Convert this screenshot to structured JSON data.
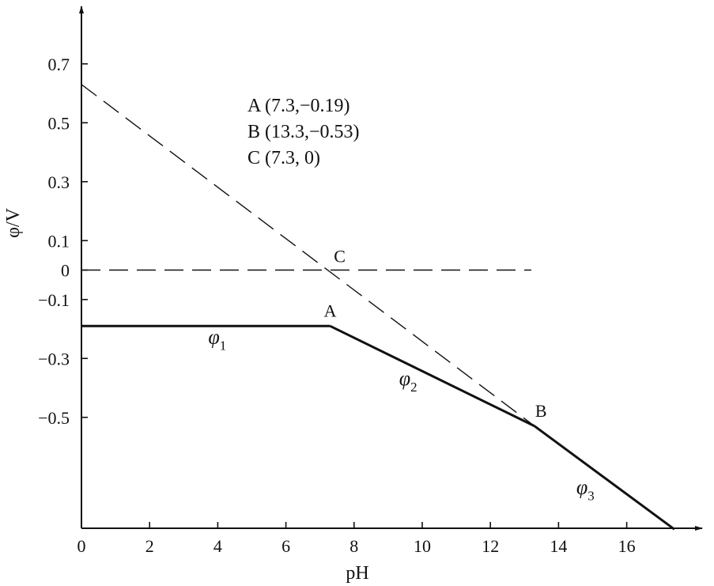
{
  "chart_data": {
    "type": "line",
    "xlabel": "pH",
    "ylabel": "φ/V",
    "xlim": [
      0,
      18
    ],
    "ylim": [
      -0.9,
      0.9
    ],
    "x_ticks": [
      0,
      2,
      4,
      6,
      8,
      10,
      12,
      14,
      16
    ],
    "y_ticks": [
      0.7,
      0.5,
      0.3,
      0.1,
      0,
      -0.1,
      -0.3,
      -0.5
    ],
    "y_tick_labels": [
      "0.7",
      "0.5",
      "0.3",
      "0.1",
      "0",
      "−0.1",
      "−0.3",
      "−0.5"
    ],
    "grid": false,
    "series": [
      {
        "name": "φ1",
        "style": "solid",
        "points": [
          [
            0,
            -0.19
          ],
          [
            7.3,
            -0.19
          ]
        ]
      },
      {
        "name": "φ2",
        "style": "solid",
        "points": [
          [
            7.3,
            -0.19
          ],
          [
            13.3,
            -0.53
          ]
        ]
      },
      {
        "name": "φ3",
        "style": "solid",
        "points": [
          [
            13.3,
            -0.53
          ],
          [
            17.4,
            -0.88
          ]
        ]
      },
      {
        "style": "dashed",
        "points": [
          [
            0,
            0.63
          ],
          [
            13.3,
            -0.53
          ]
        ]
      },
      {
        "style": "dashed",
        "points": [
          [
            0,
            0
          ],
          [
            13.2,
            0
          ]
        ]
      }
    ],
    "curve_labels": [
      {
        "base": "φ",
        "sub": "1",
        "x": 4,
        "y": -0.25
      },
      {
        "base": "φ",
        "sub": "2",
        "x": 9.6,
        "y": -0.39
      },
      {
        "base": "φ",
        "sub": "3",
        "x": 14.8,
        "y": -0.76
      }
    ],
    "points": [
      {
        "label": "A",
        "x": 7.3,
        "y": -0.19
      },
      {
        "label": "B",
        "x": 13.3,
        "y": -0.53
      },
      {
        "label": "C",
        "x": 7.3,
        "y": 0
      }
    ],
    "annotations": [
      "A (7.3,−0.19)",
      "B (13.3,−0.53)",
      "C (7.3, 0)"
    ],
    "color": "#111111"
  }
}
